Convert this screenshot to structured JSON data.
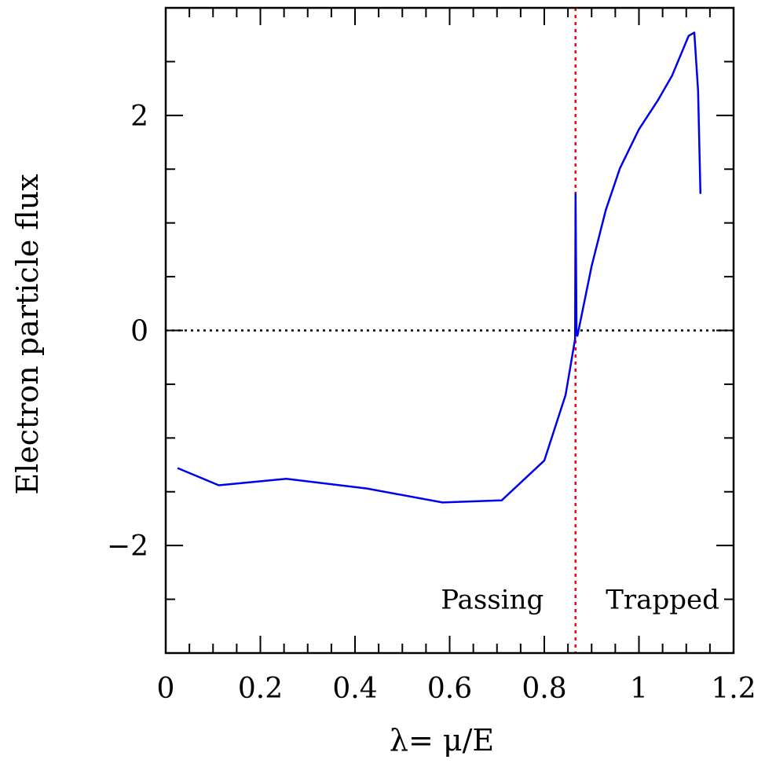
{
  "chart_data": {
    "type": "line",
    "title": "",
    "xlabel": "λ=  μ/E",
    "ylabel": "Electron particle flux",
    "xlim": [
      0,
      1.2
    ],
    "ylim": [
      -3,
      3
    ],
    "x_ticks": [
      0,
      0.2,
      0.4,
      0.6,
      0.8,
      1,
      1.2
    ],
    "x_tick_labels": [
      "0",
      "0.2",
      "0.4",
      "0.6",
      "0.8",
      "1",
      "1.2"
    ],
    "y_ticks": [
      -2,
      0,
      2
    ],
    "y_tick_labels": [
      "−2",
      "0",
      "2"
    ],
    "grid": false,
    "series": [
      {
        "color": "#0000ee",
        "x": [
          0.025,
          0.112,
          0.255,
          0.425,
          0.585,
          0.71,
          0.8,
          0.845,
          0.865,
          0.866,
          0.868,
          0.87,
          0.9,
          0.93,
          0.96,
          1.0,
          1.04,
          1.07,
          1.105,
          1.117,
          1.125,
          1.13
        ],
        "y": [
          -1.28,
          -1.44,
          -1.38,
          -1.47,
          -1.6,
          -1.58,
          -1.21,
          -0.6,
          -0.08,
          1.27,
          0.0,
          -0.05,
          0.6,
          1.12,
          1.51,
          1.87,
          2.14,
          2.37,
          2.74,
          2.77,
          2.23,
          1.27
        ]
      }
    ],
    "reference_lines": [
      {
        "orientation": "horizontal",
        "value": 0,
        "color": "#000000",
        "style": "dotted"
      },
      {
        "orientation": "vertical",
        "value": 0.866,
        "color": "#ff0000",
        "style": "dotted"
      }
    ],
    "annotations": [
      {
        "text": "Passing",
        "x": 0.832,
        "y": -2.5
      },
      {
        "text": "Trapped",
        "x": 0.9,
        "y": -2.5
      }
    ]
  }
}
